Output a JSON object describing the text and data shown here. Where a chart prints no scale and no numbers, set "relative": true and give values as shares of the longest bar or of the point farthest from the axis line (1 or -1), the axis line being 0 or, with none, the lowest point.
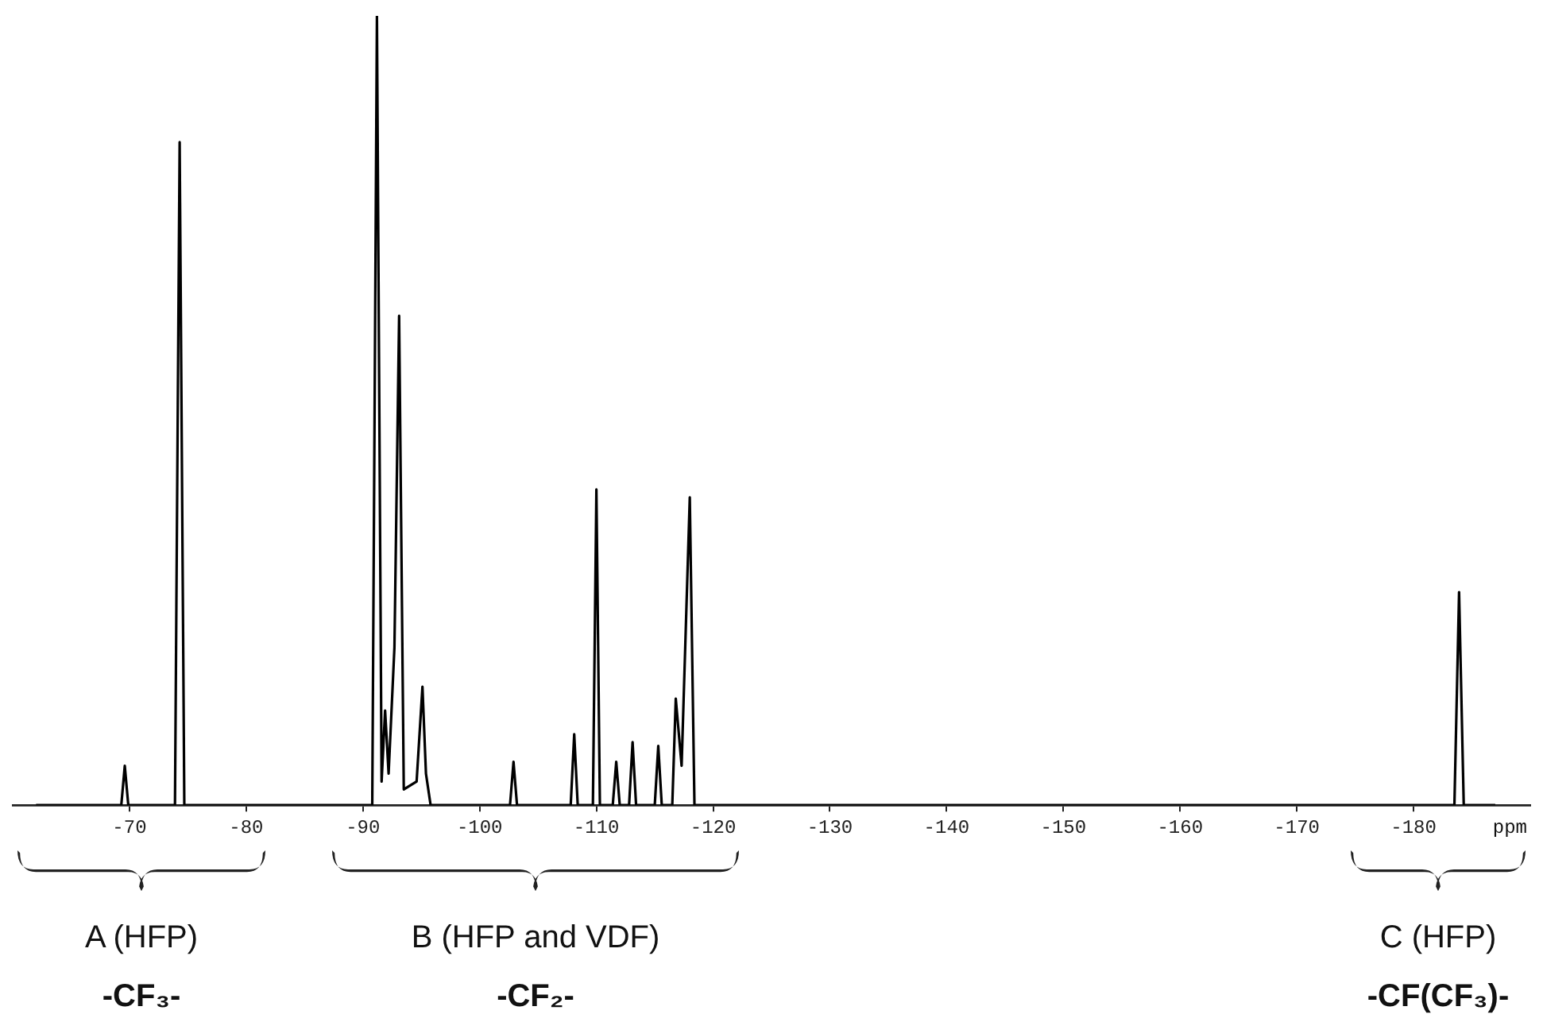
{
  "chart_data": {
    "type": "line",
    "relative": true,
    "color": "#000000",
    "marker": "none",
    "line_style": "solid",
    "grid": false,
    "legend": false,
    "xlabel": "ppm",
    "x": [
      -62,
      -69.3,
      -69.6,
      -69.9,
      -73.9,
      -74.3,
      -74.7,
      -90.8,
      -91.2,
      -91.6,
      -91.9,
      -92.2,
      -92.7,
      -93.1,
      -93.5,
      -94.6,
      -95.1,
      -95.4,
      -95.8,
      -102.6,
      -102.9,
      -103.2,
      -107.8,
      -108.1,
      -108.4,
      -109.7,
      -110.0,
      -110.3,
      -111.4,
      -111.7,
      -112.0,
      -112.8,
      -113.1,
      -113.4,
      -115.0,
      -115.3,
      -115.6,
      -116.5,
      -116.8,
      -117.3,
      -118.0,
      -118.4,
      -183.5,
      -183.9,
      -184.3,
      -187
    ],
    "values": [
      0,
      0,
      0.05,
      0,
      0,
      0.84,
      0,
      0,
      1.0,
      0.03,
      0.12,
      0.04,
      0.2,
      0.62,
      0.02,
      0.03,
      0.15,
      0.04,
      0,
      0,
      0.055,
      0,
      0,
      0.09,
      0,
      0,
      0.4,
      0,
      0,
      0.055,
      0,
      0,
      0.08,
      0,
      0,
      0.075,
      0,
      0,
      0.135,
      0.05,
      0.39,
      0,
      0,
      0.27,
      0,
      0
    ],
    "xlim": [
      -60,
      -190
    ],
    "xticks": [
      -70,
      -80,
      -90,
      -100,
      -110,
      -120,
      -130,
      -140,
      -150,
      -160,
      -170,
      -180
    ],
    "annotations": [
      "A (HFP)",
      "-CF₃-",
      "B (HFP and VDF)",
      "-CF₂-",
      "C (HFP)",
      "-CF(CF₃)-"
    ]
  }
}
